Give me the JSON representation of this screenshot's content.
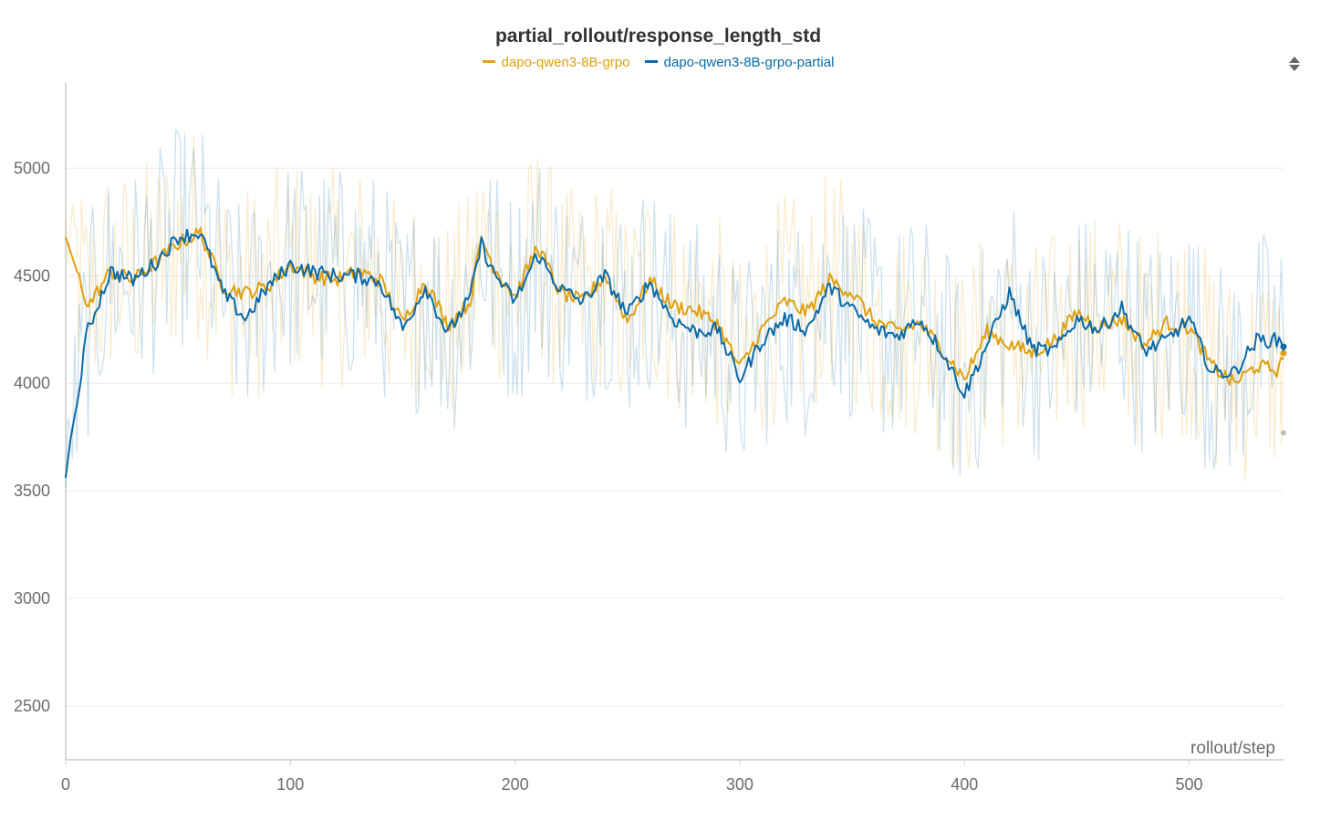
{
  "chart_data": {
    "type": "line",
    "title": "partial_rollout/response_length_std",
    "xlabel": "rollout/step",
    "ylabel": "",
    "xlim": [
      0,
      542
    ],
    "ylim": [
      2250,
      5400
    ],
    "x_ticks": [
      0,
      100,
      200,
      300,
      400,
      500
    ],
    "y_ticks": [
      2500,
      3000,
      3500,
      4000,
      4500,
      5000
    ],
    "grid": true,
    "legend_position": "top-center",
    "series": [
      {
        "name": "dapo-qwen3-8B-grpo",
        "color": "#e0a010",
        "x": [
          0,
          10,
          20,
          30,
          40,
          50,
          60,
          70,
          80,
          90,
          100,
          110,
          120,
          130,
          140,
          150,
          160,
          170,
          180,
          185,
          190,
          200,
          210,
          220,
          230,
          240,
          250,
          260,
          270,
          280,
          290,
          300,
          310,
          320,
          330,
          340,
          350,
          360,
          370,
          380,
          390,
          400,
          410,
          420,
          430,
          440,
          450,
          460,
          470,
          480,
          490,
          500,
          510,
          520,
          530,
          540,
          542
        ],
        "values": [
          4680,
          4360,
          4520,
          4480,
          4560,
          4650,
          4700,
          4450,
          4420,
          4450,
          4550,
          4500,
          4480,
          4520,
          4480,
          4280,
          4480,
          4270,
          4380,
          4680,
          4550,
          4400,
          4640,
          4420,
          4380,
          4500,
          4290,
          4480,
          4360,
          4340,
          4280,
          4070,
          4250,
          4380,
          4330,
          4480,
          4420,
          4290,
          4240,
          4280,
          4160,
          4020,
          4240,
          4180,
          4140,
          4200,
          4330,
          4260,
          4300,
          4180,
          4280,
          4260,
          4080,
          4000,
          4080,
          4060,
          4140
        ]
      },
      {
        "name": "dapo-qwen3-8B-grpo-partial",
        "color": "#0a6aa8",
        "x": [
          0,
          2,
          4,
          6,
          8,
          10,
          20,
          30,
          40,
          50,
          60,
          70,
          80,
          90,
          100,
          110,
          120,
          130,
          140,
          150,
          160,
          170,
          180,
          185,
          190,
          200,
          210,
          220,
          230,
          240,
          250,
          260,
          270,
          280,
          290,
          300,
          310,
          320,
          330,
          340,
          350,
          360,
          370,
          380,
          390,
          400,
          410,
          420,
          430,
          440,
          450,
          460,
          470,
          480,
          490,
          500,
          510,
          520,
          530,
          540,
          542
        ],
        "values": [
          3560,
          3730,
          3850,
          3950,
          4150,
          4250,
          4520,
          4480,
          4560,
          4680,
          4700,
          4420,
          4300,
          4450,
          4550,
          4520,
          4500,
          4500,
          4470,
          4250,
          4450,
          4230,
          4400,
          4650,
          4520,
          4380,
          4600,
          4440,
          4380,
          4500,
          4320,
          4470,
          4300,
          4240,
          4250,
          4020,
          4200,
          4300,
          4250,
          4450,
          4340,
          4250,
          4220,
          4300,
          4150,
          3950,
          4180,
          4420,
          4160,
          4150,
          4300,
          4250,
          4350,
          4150,
          4200,
          4300,
          4050,
          4050,
          4200,
          4200,
          4170
        ]
      }
    ]
  }
}
